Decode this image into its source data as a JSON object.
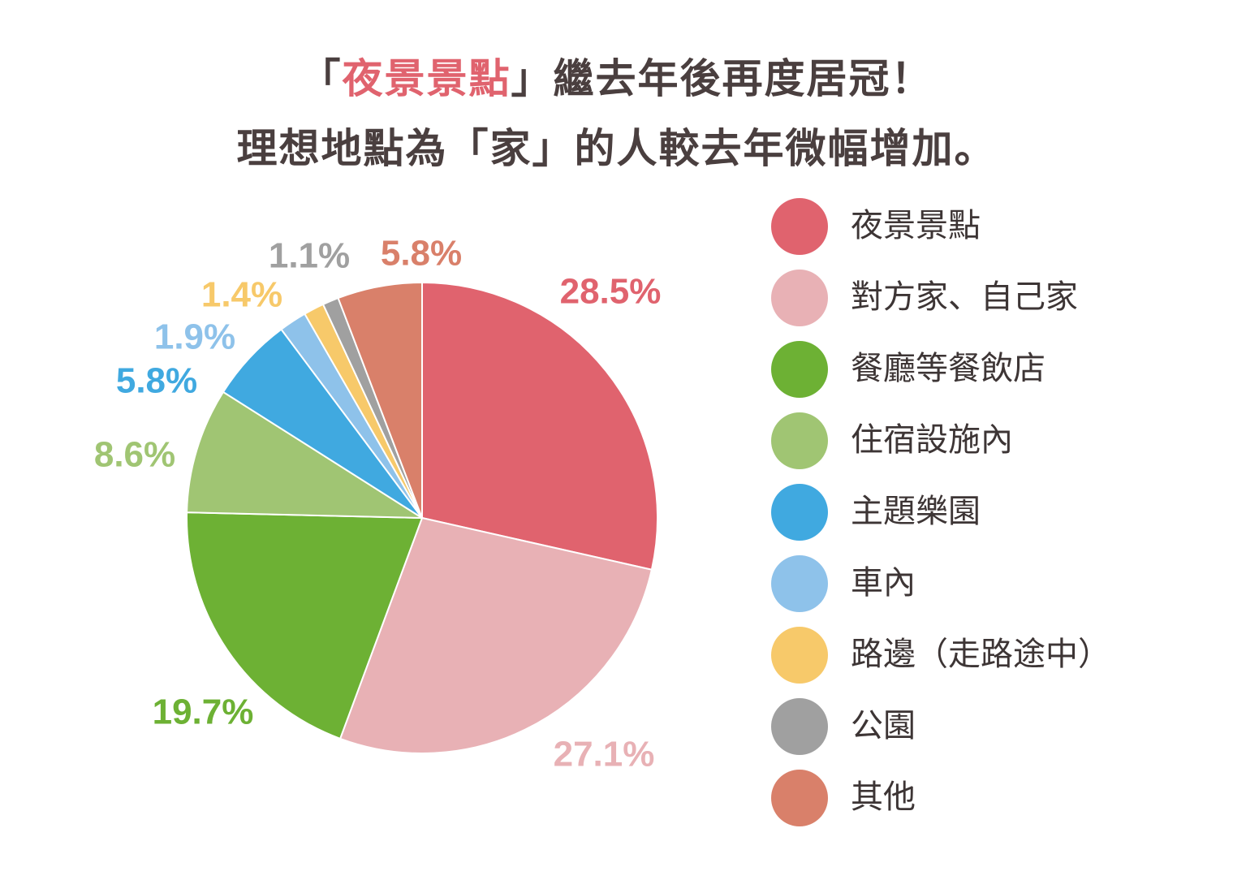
{
  "title": {
    "line1_prefix": "「",
    "line1_highlight": "夜景景點",
    "line1_suffix": "」繼去年後再度居冠！",
    "line2": "理想地點為「家」的人較去年微幅增加。"
  },
  "chart_data": {
    "type": "pie",
    "unit": "%",
    "slices": [
      {
        "label": "夜景景點",
        "value": 28.5,
        "value_label": "28.5%",
        "color": "#e0636e"
      },
      {
        "label": "對方家、自己家",
        "value": 27.1,
        "value_label": "27.1%",
        "color": "#e8b1b5"
      },
      {
        "label": "餐廳等餐飲店",
        "value": 19.7,
        "value_label": "19.7%",
        "color": "#6db134"
      },
      {
        "label": "住宿設施內",
        "value": 8.6,
        "value_label": "8.6%",
        "color": "#a0c573"
      },
      {
        "label": "主題樂園",
        "value": 5.8,
        "value_label": "5.8%",
        "color": "#40a9e0"
      },
      {
        "label": "車內",
        "value": 1.9,
        "value_label": "1.9%",
        "color": "#8ec2ea"
      },
      {
        "label": "路邊（走路途中）",
        "value": 1.4,
        "value_label": "1.4%",
        "color": "#f7c96a"
      },
      {
        "label": "公園",
        "value": 1.1,
        "value_label": "1.1%",
        "color": "#a0a0a0"
      },
      {
        "label": "其他",
        "value": 5.8,
        "value_label": "5.8%",
        "color": "#d9806a"
      }
    ],
    "legend": "right"
  }
}
